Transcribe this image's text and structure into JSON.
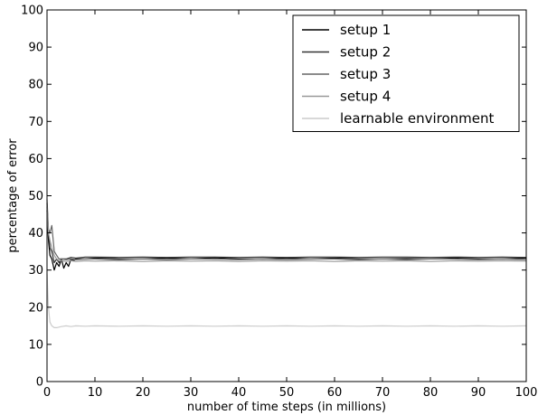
{
  "chart_data": {
    "type": "line",
    "title": "",
    "xlabel": "number of time steps (in millions)",
    "ylabel": "percentage of error",
    "xlim": [
      0,
      100
    ],
    "ylim": [
      0,
      100
    ],
    "xticks": [
      0,
      10,
      20,
      30,
      40,
      50,
      60,
      70,
      80,
      90,
      100
    ],
    "yticks": [
      0,
      10,
      20,
      30,
      40,
      50,
      60,
      70,
      80,
      90,
      100
    ],
    "grid": false,
    "legend_position": "top-right",
    "series": [
      {
        "name": "setup 1",
        "color": "#000000",
        "x": [
          0,
          0.3,
          0.6,
          1,
          1.5,
          2,
          2.5,
          3,
          3.5,
          4,
          4.5,
          5,
          5.5,
          6,
          8,
          10,
          15,
          20,
          25,
          30,
          35,
          40,
          45,
          50,
          55,
          60,
          65,
          70,
          75,
          80,
          85,
          90,
          95,
          100
        ],
        "values": [
          46,
          38,
          34,
          33,
          30,
          32,
          31,
          33,
          30.5,
          32,
          31,
          33,
          32.5,
          33,
          33,
          33.2,
          33,
          33,
          33.2,
          33,
          33.3,
          33,
          33,
          33.2,
          33,
          33.2,
          33,
          33,
          33.1,
          33,
          33.2,
          33,
          33,
          33.2
        ]
      },
      {
        "name": "setup 2",
        "color": "#333333",
        "x": [
          0,
          0.3,
          0.6,
          1,
          1.5,
          2,
          2.5,
          3,
          4,
          5,
          6,
          8,
          10,
          15,
          20,
          25,
          30,
          35,
          40,
          45,
          50,
          55,
          60,
          65,
          70,
          75,
          80,
          85,
          90,
          95,
          100
        ],
        "values": [
          48,
          40,
          36,
          35,
          32,
          33,
          32,
          33,
          33,
          33.4,
          33.2,
          33.5,
          33.5,
          33.4,
          33.5,
          33.4,
          33.5,
          33.5,
          33.4,
          33.5,
          33.4,
          33.5,
          33.5,
          33.4,
          33.5,
          33.5,
          33.4,
          33.5,
          33.4,
          33.5,
          33.4
        ]
      },
      {
        "name": "setup 3",
        "color": "#666666",
        "x": [
          0,
          0.3,
          0.6,
          1,
          1.5,
          2,
          2.5,
          3,
          4,
          5,
          6,
          8,
          10,
          15,
          20,
          25,
          30,
          35,
          40,
          45,
          50,
          55,
          60,
          65,
          70,
          75,
          80,
          85,
          90,
          95,
          100
        ],
        "values": [
          49,
          41,
          40,
          42,
          35,
          34,
          33,
          33,
          32.8,
          33,
          32.8,
          33,
          33,
          32.8,
          33,
          32.8,
          33,
          33,
          32.8,
          33,
          32.8,
          33,
          33,
          32.8,
          33,
          32.8,
          33,
          33,
          32.8,
          33,
          32.8
        ]
      },
      {
        "name": "setup 4",
        "color": "#999999",
        "x": [
          0,
          0.3,
          0.6,
          1,
          1.5,
          2,
          2.5,
          3,
          4,
          5,
          6,
          8,
          10,
          15,
          20,
          25,
          30,
          35,
          40,
          45,
          50,
          55,
          60,
          65,
          70,
          75,
          80,
          85,
          90,
          95,
          100
        ],
        "values": [
          47,
          40,
          38,
          36,
          34,
          33,
          32.5,
          32.5,
          32.3,
          32.5,
          32.3,
          32.5,
          32.4,
          32.5,
          32.3,
          32.5,
          32.4,
          32.5,
          32.3,
          32.5,
          32.4,
          32.5,
          32.3,
          32.5,
          32.4,
          32.5,
          32.3,
          32.5,
          32.4,
          32.5,
          32.4
        ]
      },
      {
        "name": "learnable environment",
        "color": "#cccccc",
        "x": [
          0,
          0.3,
          0.6,
          1,
          1.5,
          2,
          3,
          4,
          5,
          6,
          8,
          10,
          15,
          20,
          25,
          30,
          35,
          40,
          45,
          50,
          55,
          60,
          65,
          70,
          75,
          80,
          85,
          90,
          95,
          100
        ],
        "values": [
          29,
          20,
          16,
          15,
          14.5,
          14.5,
          14.8,
          15,
          14.8,
          15,
          14.9,
          15,
          14.9,
          15,
          14.9,
          15,
          14.9,
          15,
          14.9,
          15,
          14.9,
          15,
          14.9,
          15,
          14.9,
          15,
          14.9,
          15,
          14.9,
          15
        ]
      }
    ]
  }
}
